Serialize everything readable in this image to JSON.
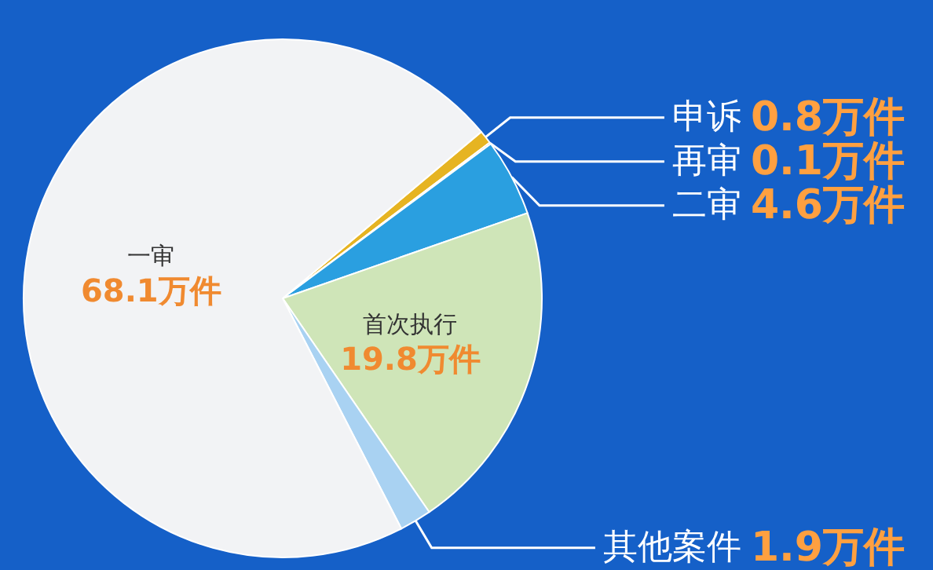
{
  "chart_data": {
    "type": "pie",
    "categories": [
      "申诉",
      "再审",
      "二审",
      "首次执行",
      "其他案件",
      "一审"
    ],
    "values": [
      0.8,
      0.1,
      4.6,
      19.8,
      1.9,
      68.1
    ],
    "value_labels": [
      "0.8万件",
      "0.1万件",
      "4.6万件",
      "19.8万件",
      "1.9万件",
      "68.1万件"
    ],
    "colors": [
      "#e6b422",
      "#e8702a",
      "#2a9fe0",
      "#cfe5b8",
      "#a9d2f2",
      "#f2f3f5"
    ],
    "legend": false
  }
}
